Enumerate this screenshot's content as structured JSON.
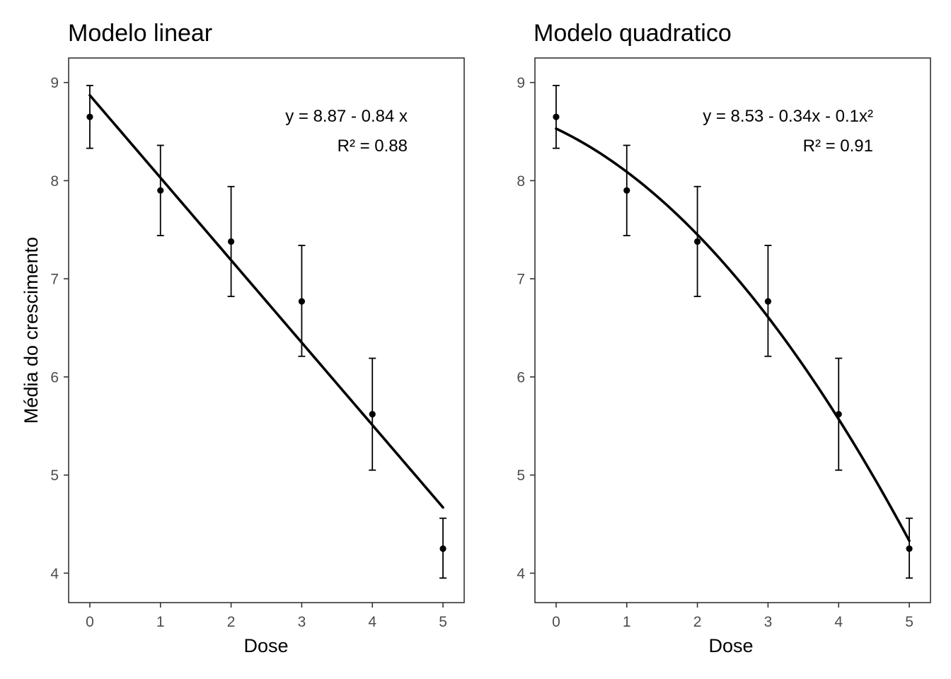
{
  "chart_data": [
    {
      "type": "scatter",
      "title": "Modelo linear",
      "xlabel": "Dose",
      "ylabel": "Média do crescimento",
      "x": [
        0,
        1,
        2,
        3,
        4,
        5
      ],
      "y": [
        8.65,
        7.9,
        7.38,
        6.77,
        5.62,
        4.25
      ],
      "error_low": [
        8.33,
        7.44,
        6.82,
        6.21,
        5.05,
        3.95
      ],
      "error_high": [
        8.97,
        8.36,
        7.94,
        7.34,
        6.19,
        4.56
      ],
      "fit": {
        "model": "linear",
        "coefficients": [
          8.87,
          -0.84
        ]
      },
      "annotations": [
        "y = 8.87 - 0.84 x",
        "R² = 0.88"
      ],
      "xlim": [
        -0.3,
        5.3
      ],
      "ylim": [
        3.7,
        9.25
      ],
      "xticks": [
        "0",
        "1",
        "2",
        "3",
        "4",
        "5"
      ],
      "yticks": [
        "4",
        "5",
        "6",
        "7",
        "8",
        "9"
      ],
      "grid": false
    },
    {
      "type": "scatter",
      "title": "Modelo quadratico",
      "xlabel": "Dose",
      "ylabel": "",
      "x": [
        0,
        1,
        2,
        3,
        4,
        5
      ],
      "y": [
        8.65,
        7.9,
        7.38,
        6.77,
        5.62,
        4.25
      ],
      "error_low": [
        8.33,
        7.44,
        6.82,
        6.21,
        5.05,
        3.95
      ],
      "error_high": [
        8.97,
        8.36,
        7.94,
        7.34,
        6.19,
        4.56
      ],
      "fit": {
        "model": "quadratic",
        "coefficients": [
          8.53,
          -0.34,
          -0.1
        ]
      },
      "annotations": [
        "y = 8.53 - 0.34x - 0.1x²",
        "R² = 0.91"
      ],
      "xlim": [
        -0.3,
        5.3
      ],
      "ylim": [
        3.7,
        9.25
      ],
      "xticks": [
        "0",
        "1",
        "2",
        "3",
        "4",
        "5"
      ],
      "yticks": [
        "4",
        "5",
        "6",
        "7",
        "8",
        "9"
      ],
      "grid": false
    }
  ]
}
